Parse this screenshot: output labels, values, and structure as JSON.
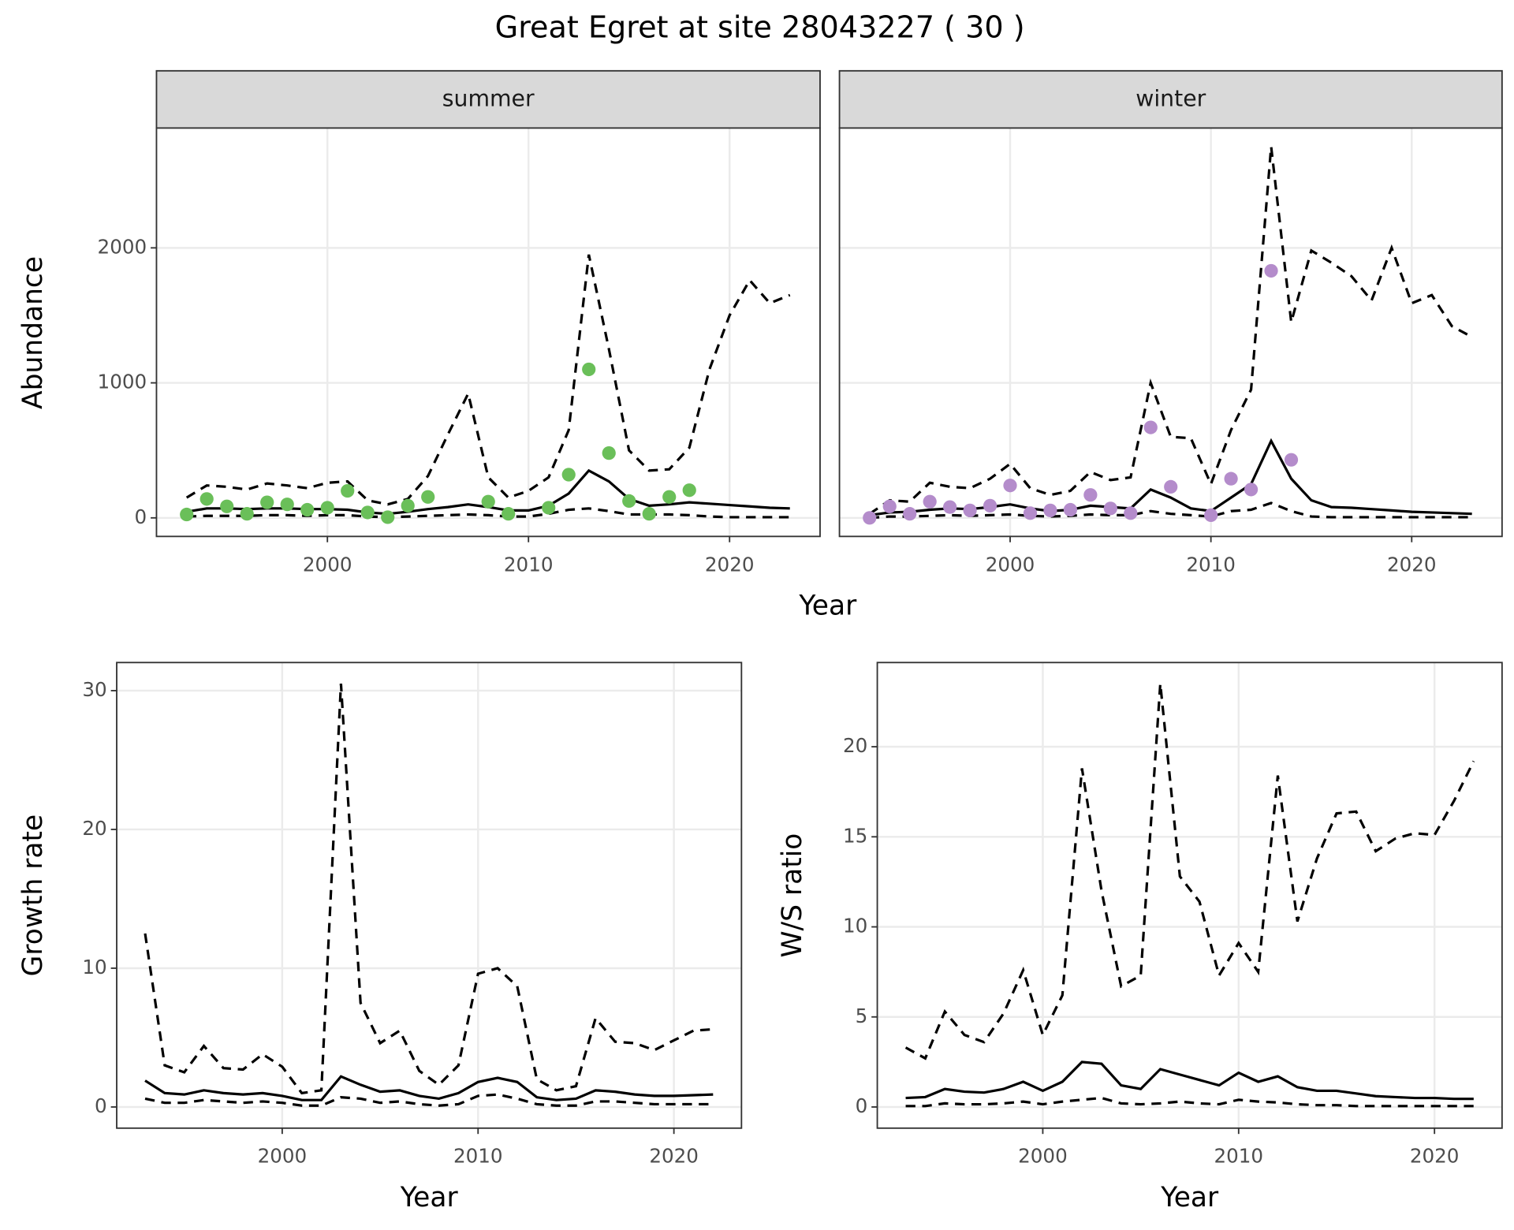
{
  "title": "Great Egret at site 28043227 ( 30 )",
  "chart_data": [
    {
      "type": "line",
      "ylabel": "Abundance",
      "xlabel": "Year",
      "xlim": [
        1991.5,
        2024.5
      ],
      "xticks": [
        2000,
        2010,
        2020
      ],
      "ylim": [
        -137.5,
        2887.5
      ],
      "yticks": [
        0,
        1000,
        2000
      ],
      "grid": true,
      "facets": [
        {
          "name": "summer",
          "x": [
            1993,
            1994,
            1995,
            1996,
            1997,
            1998,
            1999,
            2000,
            2001,
            2002,
            2003,
            2004,
            2005,
            2006,
            2007,
            2008,
            2009,
            2010,
            2011,
            2012,
            2013,
            2014,
            2015,
            2016,
            2017,
            2018,
            2019,
            2020,
            2021,
            2022,
            2023
          ],
          "series": [
            {
              "style": "solid",
              "color": "#000000",
              "values": [
                45,
                70,
                70,
                65,
                70,
                70,
                65,
                65,
                60,
                40,
                30,
                45,
                65,
                80,
                100,
                80,
                55,
                55,
                90,
                180,
                350,
                270,
                140,
                90,
                100,
                115,
                105,
                95,
                85,
                75,
                70
              ]
            },
            {
              "style": "dashed",
              "color": "#000000",
              "values": [
                150,
                240,
                230,
                210,
                255,
                240,
                220,
                260,
                270,
                130,
                100,
                140,
                310,
                620,
                920,
                300,
                150,
                200,
                300,
                650,
                1950,
                1250,
                500,
                350,
                360,
                520,
                1100,
                1500,
                1760,
                1590,
                1650
              ]
            },
            {
              "style": "dashed",
              "color": "#000000",
              "values": [
                10,
                15,
                15,
                15,
                20,
                20,
                15,
                20,
                20,
                10,
                5,
                10,
                15,
                20,
                25,
                20,
                10,
                10,
                30,
                60,
                70,
                50,
                25,
                25,
                25,
                20,
                10,
                5,
                5,
                5,
                5
              ]
            },
            {
              "type": "scatter",
              "color": "#6abf59",
              "values": [
                25,
                140,
                85,
                30,
                115,
                100,
                60,
                75,
                200,
                40,
                5,
                90,
                155,
                null,
                null,
                120,
                30,
                null,
                75,
                320,
                1100,
                480,
                125,
                30,
                155,
                205,
                null,
                null,
                null,
                null,
                null
              ]
            }
          ]
        },
        {
          "name": "winter",
          "x": [
            1993,
            1994,
            1995,
            1996,
            1997,
            1998,
            1999,
            2000,
            2001,
            2002,
            2003,
            2004,
            2005,
            2006,
            2007,
            2008,
            2009,
            2010,
            2011,
            2012,
            2013,
            2014,
            2015,
            2016,
            2017,
            2018,
            2019,
            2020,
            2021,
            2022,
            2023
          ],
          "series": [
            {
              "style": "solid",
              "color": "#000000",
              "values": [
                20,
                40,
                45,
                60,
                70,
                65,
                80,
                100,
                70,
                50,
                60,
                90,
                80,
                70,
                210,
                150,
                70,
                50,
                150,
                250,
                570,
                290,
                130,
                80,
                75,
                65,
                55,
                45,
                40,
                35,
                30
              ]
            },
            {
              "style": "dashed",
              "color": "#000000",
              "values": [
                30,
                130,
                120,
                260,
                230,
                220,
                290,
                400,
                220,
                170,
                200,
                340,
                280,
                300,
                1000,
                600,
                590,
                250,
                650,
                950,
                2750,
                1450,
                1980,
                1890,
                1790,
                1610,
                2000,
                1590,
                1650,
                1420,
                1340
              ]
            },
            {
              "style": "dashed",
              "color": "#000000",
              "values": [
                0,
                10,
                10,
                15,
                20,
                15,
                20,
                25,
                15,
                10,
                15,
                25,
                20,
                20,
                50,
                30,
                20,
                10,
                50,
                60,
                110,
                50,
                10,
                5,
                5,
                5,
                5,
                5,
                5,
                5,
                5
              ]
            },
            {
              "type": "scatter",
              "color": "#b48ccb",
              "values": [
                0,
                85,
                30,
                120,
                80,
                55,
                90,
                240,
                35,
                55,
                60,
                170,
                70,
                35,
                670,
                230,
                null,
                20,
                290,
                210,
                1830,
                430,
                null,
                null,
                null,
                null,
                null,
                null,
                null,
                null,
                null
              ]
            }
          ]
        }
      ]
    },
    {
      "type": "line",
      "ylabel": "Growth rate",
      "xlabel": "Year",
      "xlim": [
        1991.55,
        2023.45
      ],
      "xticks": [
        2000,
        2010,
        2020
      ],
      "ylim": [
        -1.525,
        32.025
      ],
      "yticks": [
        0,
        10,
        20,
        30
      ],
      "grid": true,
      "x": [
        1993,
        1994,
        1995,
        1996,
        1997,
        1998,
        1999,
        2000,
        2001,
        2002,
        2003,
        2004,
        2005,
        2006,
        2007,
        2008,
        2009,
        2010,
        2011,
        2012,
        2013,
        2014,
        2015,
        2016,
        2017,
        2018,
        2019,
        2020,
        2021,
        2022
      ],
      "series": [
        {
          "style": "solid",
          "color": "#000000",
          "values": [
            1.9,
            1.0,
            0.9,
            1.2,
            1.0,
            0.9,
            1.0,
            0.8,
            0.5,
            0.5,
            2.2,
            1.6,
            1.1,
            1.2,
            0.8,
            0.6,
            1.0,
            1.8,
            2.1,
            1.8,
            0.7,
            0.5,
            0.6,
            1.2,
            1.1,
            0.9,
            0.8,
            0.8,
            0.85,
            0.9
          ]
        },
        {
          "style": "dashed",
          "color": "#000000",
          "values": [
            12.5,
            3.0,
            2.5,
            4.4,
            2.8,
            2.7,
            3.8,
            2.9,
            1.0,
            1.2,
            30.5,
            7.5,
            4.6,
            5.5,
            2.6,
            1.6,
            3.0,
            9.6,
            10.0,
            8.7,
            2.0,
            1.2,
            1.5,
            6.4,
            4.7,
            4.6,
            4.1,
            4.8,
            5.5,
            5.6
          ]
        },
        {
          "style": "dashed",
          "color": "#000000",
          "values": [
            0.6,
            0.3,
            0.3,
            0.5,
            0.4,
            0.3,
            0.4,
            0.3,
            0.1,
            0.1,
            0.7,
            0.6,
            0.3,
            0.4,
            0.2,
            0.1,
            0.2,
            0.8,
            0.9,
            0.6,
            0.2,
            0.1,
            0.1,
            0.4,
            0.4,
            0.3,
            0.2,
            0.2,
            0.2,
            0.2
          ]
        }
      ]
    },
    {
      "type": "line",
      "ylabel": "W/S ratio",
      "xlabel": "Year",
      "xlim": [
        1991.55,
        2023.45
      ],
      "xticks": [
        2000,
        2010,
        2020
      ],
      "ylim": [
        -1.175,
        24.675
      ],
      "yticks": [
        0,
        5,
        10,
        15,
        20
      ],
      "grid": true,
      "x": [
        1993,
        1994,
        1995,
        1996,
        1997,
        1998,
        1999,
        2000,
        2001,
        2002,
        2003,
        2004,
        2005,
        2006,
        2007,
        2008,
        2009,
        2010,
        2011,
        2012,
        2013,
        2014,
        2015,
        2016,
        2017,
        2018,
        2019,
        2020,
        2021,
        2022
      ],
      "series": [
        {
          "style": "solid",
          "color": "#000000",
          "values": [
            0.5,
            0.55,
            1.0,
            0.85,
            0.8,
            1.0,
            1.4,
            0.9,
            1.4,
            2.5,
            2.4,
            1.2,
            1.0,
            2.1,
            1.8,
            1.5,
            1.2,
            1.9,
            1.4,
            1.7,
            1.1,
            0.9,
            0.9,
            0.75,
            0.6,
            0.55,
            0.5,
            0.5,
            0.45,
            0.45
          ]
        },
        {
          "style": "dashed",
          "color": "#000000",
          "values": [
            3.3,
            2.7,
            5.3,
            4.0,
            3.6,
            5.2,
            7.6,
            4.0,
            6.2,
            18.8,
            12.0,
            6.7,
            7.3,
            23.5,
            12.8,
            11.4,
            7.3,
            9.1,
            7.5,
            18.4,
            10.3,
            13.8,
            16.3,
            16.4,
            14.2,
            14.9,
            15.2,
            15.1,
            17.0,
            19.2
          ]
        },
        {
          "style": "dashed",
          "color": "#000000",
          "values": [
            0.05,
            0.05,
            0.2,
            0.15,
            0.15,
            0.2,
            0.3,
            0.15,
            0.3,
            0.4,
            0.5,
            0.2,
            0.15,
            0.2,
            0.3,
            0.2,
            0.15,
            0.4,
            0.3,
            0.25,
            0.15,
            0.1,
            0.1,
            0.05,
            0.05,
            0.05,
            0.05,
            0.05,
            0.05,
            0.05
          ]
        }
      ]
    }
  ]
}
